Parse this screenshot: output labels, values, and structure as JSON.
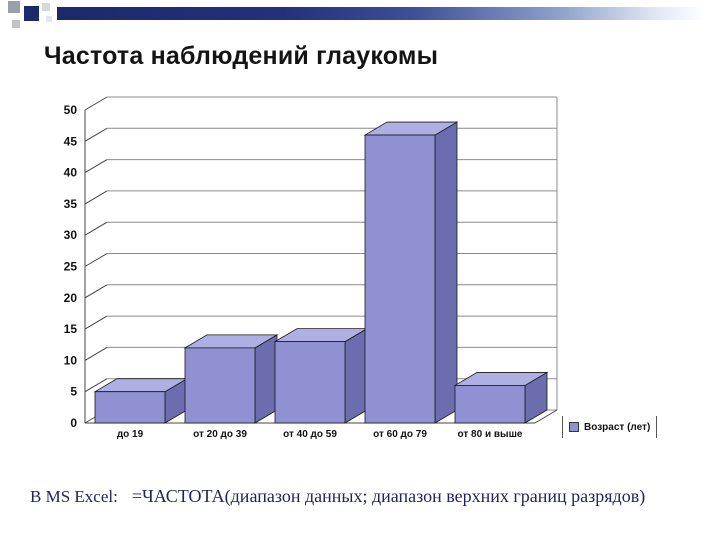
{
  "slide": {
    "title": "Частота наблюдений глаукомы",
    "footer_prefix": "В MS Excel:",
    "footer_formula": "=ЧАСТОТА(диапазон данных; диапазон верхних границ разрядов)"
  },
  "chart_data": {
    "type": "bar",
    "style": "3d",
    "title": "Частота наблюдений глаукомы",
    "categories": [
      "до 19",
      "от 20 до 39",
      "от 40 до 59",
      "от 60 до 79",
      "от 80 и выше"
    ],
    "values": [
      5,
      12,
      13,
      46,
      6
    ],
    "series_name": "Возраст (лет)",
    "ylim": [
      0,
      50
    ],
    "ytick_step": 5,
    "grid": true,
    "legend_position": "bottom-right",
    "bar_color": "#8f91d2",
    "bar_top_color": "#aeb0e4",
    "bar_side_color": "#6b6dae",
    "gridline_color": "#8c8c8c",
    "axis_color": "#444444"
  }
}
